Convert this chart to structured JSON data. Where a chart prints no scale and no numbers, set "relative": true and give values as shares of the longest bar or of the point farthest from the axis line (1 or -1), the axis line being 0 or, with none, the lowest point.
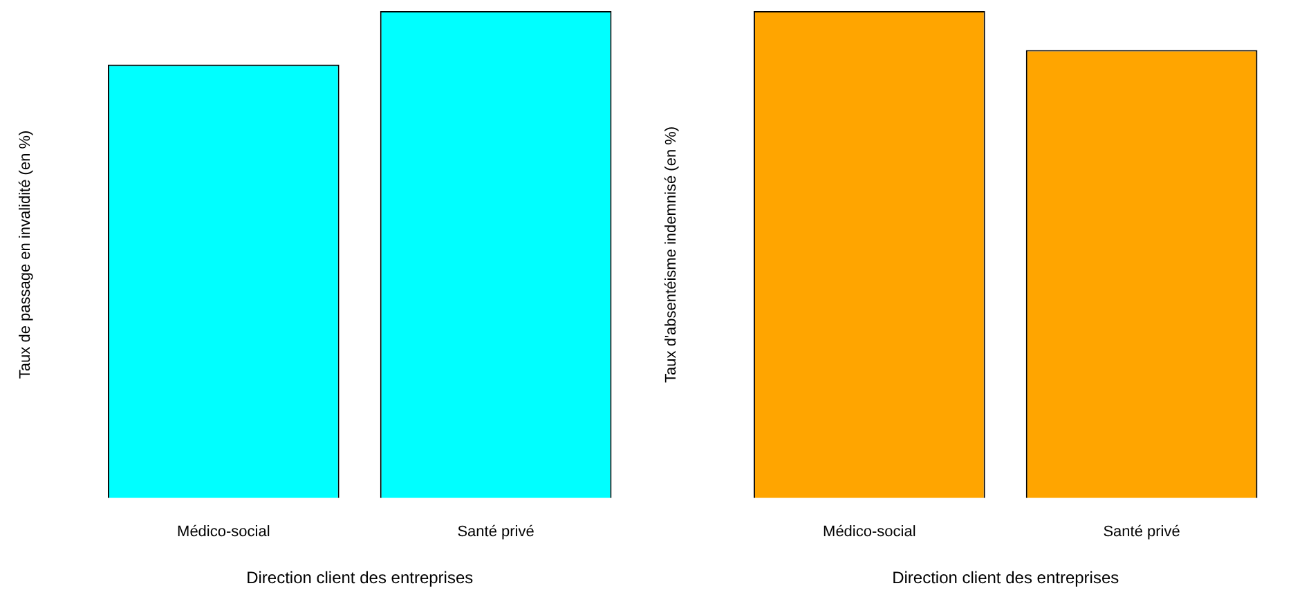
{
  "chart_data": [
    {
      "type": "bar",
      "categories": [
        "Médico-social",
        "Santé privé"
      ],
      "values": [
        0.89,
        1
      ],
      "color": "#00ffff",
      "xlabel": "Direction client des entreprises",
      "ylabel": "Taux de passage en invalidité (en %)",
      "relative": true
    },
    {
      "type": "bar",
      "categories": [
        "Médico-social",
        "Santé privé"
      ],
      "values": [
        1,
        0.92
      ],
      "color": "#ffa500",
      "xlabel": "Direction client des entreprises",
      "ylabel": "Taux d'absentéisme indemnisé (en %)",
      "relative": true
    }
  ]
}
